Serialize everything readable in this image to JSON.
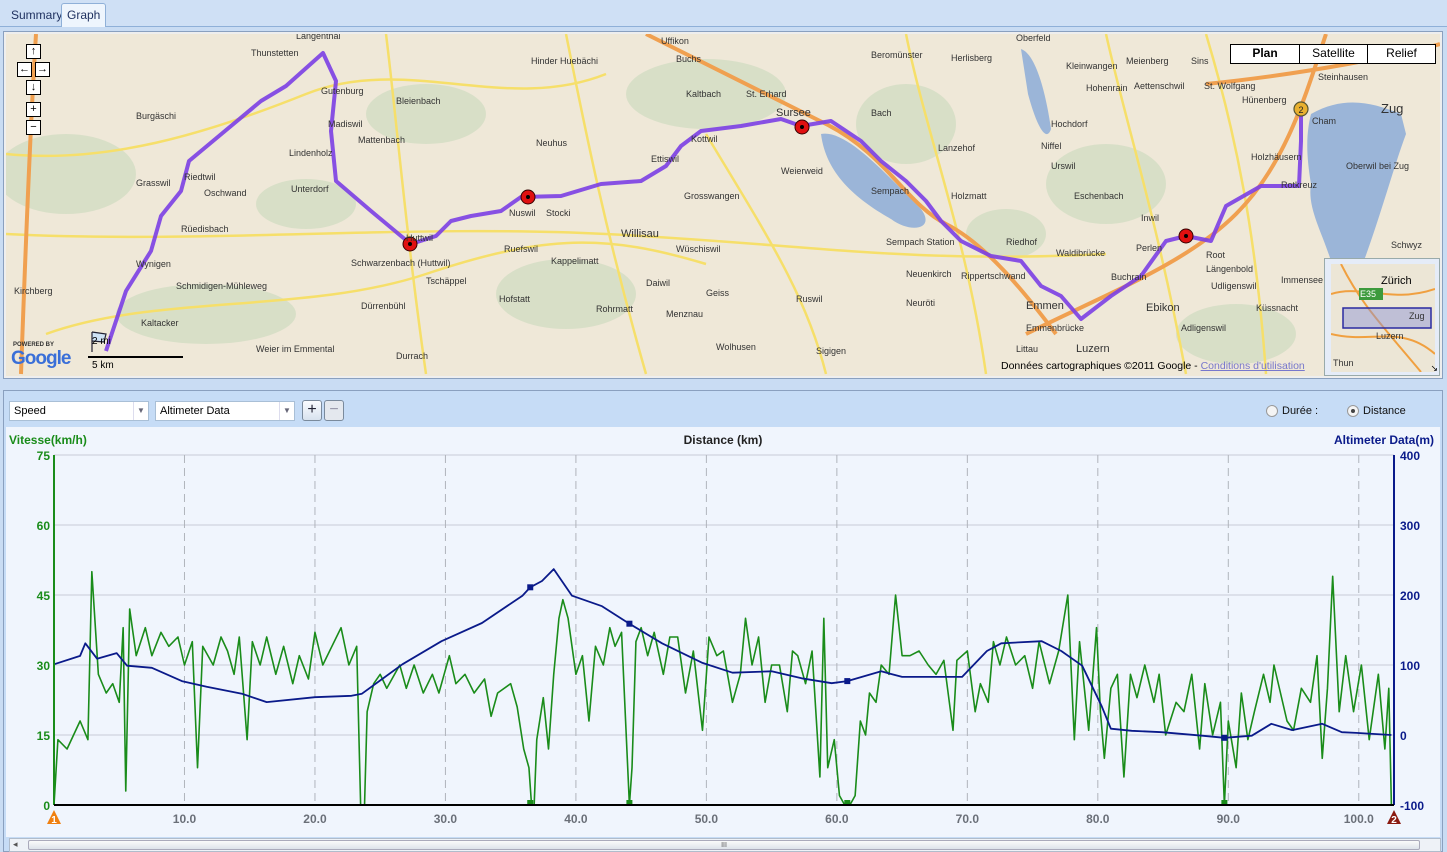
{
  "tabs": [
    {
      "label": "Summary",
      "active": false
    },
    {
      "label": "Graph",
      "active": true
    }
  ],
  "map": {
    "map_types": [
      "Plan",
      "Satellite",
      "Relief"
    ],
    "nav_icons": [
      "arrow-up",
      "arrow-left",
      "arrow-right",
      "arrow-down",
      "zoom-in",
      "zoom-out"
    ],
    "scale": {
      "miles": "2 mi",
      "km": "5 km"
    },
    "powered_by": "POWERED BY",
    "logo": "Google",
    "copyright": "Données cartographiques ©2011 Google - ",
    "terms_link": "Conditions d'utilisation",
    "overview_labels": [
      "Zürich",
      "E35",
      "Zug",
      "Luzern",
      "Thun"
    ],
    "route_color": "#7b3fe4",
    "end_marker": "2",
    "places": [
      "Langenthal",
      "Thunstetten",
      "Burgäschi",
      "Riedtwil",
      "Grasswil",
      "Oschwand",
      "Rüedisbach",
      "Wynigen",
      "Kirchberg",
      "Schmidigen-Mühleweg",
      "Kaltacker",
      "Weier im Emmental",
      "Gutenburg",
      "Madiswil",
      "Mattenbach",
      "Lindenholz",
      "Unterdorf",
      "Bleienbach",
      "Huttwil",
      "Schwarzenbach (Huttwil)",
      "Dürrenbühl",
      "Durrach",
      "Tschäppel",
      "Hofstatt",
      "Ruefswil",
      "Nuswil",
      "Stocki",
      "Kappelimatt",
      "Hinder Huebächi",
      "Neuhus",
      "Willisau",
      "Ettiswil",
      "Kottwil",
      "Grosswangen",
      "Wüschiswil",
      "Daiwil",
      "Geiss",
      "Menznau",
      "Rohrmatt",
      "Wolhusen",
      "Ruswil",
      "Sigigen",
      "Sursee",
      "Buchs",
      "Uffikon",
      "Kaltbach",
      "St. Erhard",
      "Beromünster",
      "Bach",
      "Weierweid",
      "Sempach",
      "Sempach Station",
      "Neuenkirch",
      "Neuröti",
      "Holzmatt",
      "Lanzehof",
      "Niffel",
      "Hochdorf",
      "Urswil",
      "Eschenbach",
      "Inwil",
      "Perlen",
      "Root",
      "Längenbold",
      "Udligenswil",
      "Küssnacht",
      "Ebikon",
      "Adligenswil",
      "Buchrain",
      "Emmen",
      "Emmenbrücke",
      "Rippertschwand",
      "Waldibrücke",
      "Riedhof",
      "Hohenrain",
      "Kleinwangen",
      "Oberfeld",
      "Herlisberg",
      "Meienberg",
      "Sins",
      "Aettenschwil",
      "St. Wolfgang",
      "Hünenberg",
      "Cham",
      "Steinhausen",
      "Zug",
      "Holzhäusern",
      "Rotkreuz",
      "Oberwil bei Zug",
      "Immensee",
      "Luzern",
      "Littau",
      "Schwyz"
    ]
  },
  "graph": {
    "left_select": "Speed",
    "right_select": "Altimeter Data",
    "add_label": "+",
    "remove_label": "−",
    "radio_duration": "Durée :",
    "radio_distance": "Distance",
    "x_mode": "distance",
    "scroll_grip": "III"
  },
  "chart_data": {
    "type": "line",
    "title": "Distance (km)",
    "xlabel": "Distance (km)",
    "ylabel_left": "Vitesse(km/h)",
    "ylabel_right": "Altimeter Data(m)",
    "xlim": [
      0,
      102.7
    ],
    "ylim_left": [
      0,
      75
    ],
    "ylim_right": [
      -100,
      400
    ],
    "x_ticks": [
      "10.0",
      "20.0",
      "30.0",
      "40.0",
      "50.0",
      "60.0",
      "70.0",
      "80.0",
      "90.0",
      "100.0"
    ],
    "y_ticks_left": [
      "0",
      "15",
      "30",
      "45",
      "60",
      "75"
    ],
    "y_ticks_right": [
      "-100",
      "0",
      "100",
      "200",
      "300",
      "400"
    ],
    "grid": true,
    "start_marker": "1",
    "end_marker": "2",
    "series": [
      {
        "axis": "left",
        "color": "#1a8c1a",
        "points": [
          [
            0,
            0
          ],
          [
            0.3,
            14
          ],
          [
            1,
            12
          ],
          [
            2,
            18
          ],
          [
            2.6,
            14
          ],
          [
            2.9,
            50
          ],
          [
            3.4,
            28
          ],
          [
            4,
            24
          ],
          [
            4.5,
            26
          ],
          [
            5,
            22
          ],
          [
            5.3,
            38
          ],
          [
            5.5,
            3
          ],
          [
            5.8,
            42
          ],
          [
            6.3,
            32
          ],
          [
            7,
            38
          ],
          [
            7.5,
            32
          ],
          [
            8.2,
            37
          ],
          [
            8.8,
            34
          ],
          [
            9.5,
            36
          ],
          [
            10,
            30
          ],
          [
            10.6,
            35
          ],
          [
            11,
            8
          ],
          [
            11.4,
            34
          ],
          [
            12.2,
            30
          ],
          [
            12.8,
            36
          ],
          [
            13.3,
            33
          ],
          [
            13.8,
            28
          ],
          [
            14.2,
            36
          ],
          [
            14.8,
            14
          ],
          [
            15.2,
            35
          ],
          [
            15.8,
            30
          ],
          [
            16.3,
            36
          ],
          [
            17,
            28
          ],
          [
            17.6,
            34
          ],
          [
            18.3,
            26
          ],
          [
            18.8,
            32
          ],
          [
            19.5,
            27
          ],
          [
            20,
            37
          ],
          [
            20.6,
            30
          ],
          [
            21.3,
            34
          ],
          [
            22,
            38
          ],
          [
            22.6,
            30
          ],
          [
            23.2,
            34
          ],
          [
            23.5,
            0
          ],
          [
            23.8,
            0
          ],
          [
            24,
            20
          ],
          [
            24.5,
            26
          ],
          [
            25,
            28
          ],
          [
            25.5,
            25
          ],
          [
            26.5,
            30
          ],
          [
            27,
            25
          ],
          [
            27.6,
            30
          ],
          [
            28.3,
            24
          ],
          [
            29,
            28
          ],
          [
            29.5,
            24
          ],
          [
            30.3,
            32
          ],
          [
            30.8,
            26
          ],
          [
            31.5,
            28
          ],
          [
            32.2,
            24
          ],
          [
            33,
            27
          ],
          [
            33.5,
            19
          ],
          [
            34,
            24
          ],
          [
            35,
            26
          ],
          [
            35.5,
            21
          ],
          [
            36,
            12
          ],
          [
            36.4,
            8
          ],
          [
            36.6,
            0
          ],
          [
            36.8,
            0
          ],
          [
            37,
            14
          ],
          [
            37.5,
            23
          ],
          [
            37.9,
            12
          ],
          [
            38.3,
            28
          ],
          [
            38.7,
            40
          ],
          [
            39,
            44
          ],
          [
            39.4,
            40
          ],
          [
            40,
            28
          ],
          [
            40.5,
            32
          ],
          [
            41,
            18
          ],
          [
            41.5,
            34
          ],
          [
            42.1,
            30
          ],
          [
            42.6,
            38
          ],
          [
            43,
            34
          ],
          [
            43.5,
            37
          ],
          [
            44.1,
            0
          ],
          [
            44.3,
            8
          ],
          [
            44.6,
            35
          ],
          [
            45,
            38
          ],
          [
            45.5,
            32
          ],
          [
            46,
            37
          ],
          [
            46.7,
            28
          ],
          [
            47.2,
            36
          ],
          [
            47.8,
            36
          ],
          [
            48.4,
            24
          ],
          [
            49,
            33
          ],
          [
            49.7,
            16
          ],
          [
            50.2,
            36
          ],
          [
            50.8,
            32
          ],
          [
            51.3,
            33
          ],
          [
            52,
            22
          ],
          [
            52.6,
            28
          ],
          [
            53,
            40
          ],
          [
            53.5,
            30
          ],
          [
            54,
            36
          ],
          [
            54.5,
            22
          ],
          [
            55,
            30
          ],
          [
            55.6,
            30
          ],
          [
            56.2,
            20
          ],
          [
            56.6,
            33
          ],
          [
            57,
            32
          ],
          [
            57.6,
            26
          ],
          [
            58.1,
            33
          ],
          [
            58.7,
            6
          ],
          [
            59,
            40
          ],
          [
            59.3,
            8
          ],
          [
            59.8,
            14
          ],
          [
            60.2,
            2
          ],
          [
            60.6,
            0
          ],
          [
            61,
            0
          ],
          [
            61.4,
            2
          ],
          [
            61.8,
            18
          ],
          [
            62.2,
            15
          ],
          [
            62.5,
            24
          ],
          [
            63,
            22
          ],
          [
            63.4,
            30
          ],
          [
            64,
            28
          ],
          [
            64.5,
            45
          ],
          [
            65,
            32
          ],
          [
            65.6,
            32
          ],
          [
            66.3,
            33
          ],
          [
            67,
            30
          ],
          [
            67.6,
            28
          ],
          [
            68.2,
            31
          ],
          [
            68.9,
            16
          ],
          [
            69.2,
            31
          ],
          [
            70,
            33
          ],
          [
            70.6,
            20
          ],
          [
            71,
            26
          ],
          [
            71.6,
            22
          ],
          [
            72,
            35
          ],
          [
            72.5,
            30
          ],
          [
            73,
            36
          ],
          [
            73.7,
            30
          ],
          [
            74.4,
            32
          ],
          [
            75,
            25
          ],
          [
            75.5,
            35
          ],
          [
            76.3,
            26
          ],
          [
            77,
            33
          ],
          [
            77.7,
            45
          ],
          [
            78.2,
            14
          ],
          [
            78.6,
            35
          ],
          [
            79.3,
            16
          ],
          [
            79.9,
            38
          ],
          [
            80.2,
            20
          ],
          [
            80.5,
            10
          ],
          [
            81,
            25
          ],
          [
            81.5,
            28
          ],
          [
            82,
            6
          ],
          [
            82.5,
            28
          ],
          [
            83,
            23
          ],
          [
            83.6,
            30
          ],
          [
            84.3,
            22
          ],
          [
            84.7,
            28
          ],
          [
            85.2,
            15
          ],
          [
            86,
            22
          ],
          [
            86.6,
            20
          ],
          [
            87.2,
            28
          ],
          [
            87.8,
            12
          ],
          [
            88.2,
            26
          ],
          [
            88.8,
            15
          ],
          [
            89.4,
            22
          ],
          [
            89.7,
            0
          ],
          [
            90,
            18
          ],
          [
            90.6,
            8
          ],
          [
            91,
            24
          ],
          [
            91.5,
            14
          ],
          [
            92,
            20
          ],
          [
            92.7,
            28
          ],
          [
            93.2,
            22
          ],
          [
            93.5,
            30
          ],
          [
            94,
            24
          ],
          [
            94.5,
            18
          ],
          [
            95,
            16
          ],
          [
            95.6,
            25
          ],
          [
            96.3,
            22
          ],
          [
            96.8,
            32
          ],
          [
            97.2,
            10
          ],
          [
            97.6,
            25
          ],
          [
            98,
            49
          ],
          [
            98.5,
            20
          ],
          [
            99,
            32
          ],
          [
            99.6,
            20
          ],
          [
            100.2,
            30
          ],
          [
            100.8,
            14
          ],
          [
            101.5,
            28
          ],
          [
            102,
            12
          ],
          [
            102.3,
            25
          ],
          [
            102.5,
            0
          ]
        ]
      },
      {
        "axis": "right",
        "color": "#0a1a8a",
        "points": [
          [
            0,
            101
          ],
          [
            2,
            113
          ],
          [
            2.4,
            131
          ],
          [
            3.3,
            109
          ],
          [
            4.8,
            117
          ],
          [
            5.6,
            99
          ],
          [
            7.5,
            96
          ],
          [
            9.8,
            77
          ],
          [
            11.7,
            69
          ],
          [
            14.4,
            59
          ],
          [
            16.3,
            47
          ],
          [
            20,
            54
          ],
          [
            22.8,
            56
          ],
          [
            23.6,
            59
          ],
          [
            26.7,
            101
          ],
          [
            29.7,
            134
          ],
          [
            32.8,
            160
          ],
          [
            35.9,
            199
          ],
          [
            36.5,
            211
          ],
          [
            37.4,
            220
          ],
          [
            38.3,
            237
          ],
          [
            39.7,
            199
          ],
          [
            42,
            184
          ],
          [
            44.1,
            159
          ],
          [
            46.6,
            131
          ],
          [
            49.7,
            103
          ],
          [
            52,
            89
          ],
          [
            55,
            91
          ],
          [
            57.3,
            81
          ],
          [
            59.6,
            74
          ],
          [
            60.8,
            77
          ],
          [
            63.4,
            91
          ],
          [
            65,
            83
          ],
          [
            69.6,
            83
          ],
          [
            71.5,
            120
          ],
          [
            72.6,
            131
          ],
          [
            75.7,
            134
          ],
          [
            77.2,
            120
          ],
          [
            78.8,
            99
          ],
          [
            80.3,
            41
          ],
          [
            81,
            9
          ],
          [
            82.6,
            6
          ],
          [
            84.9,
            4
          ],
          [
            88,
            -1
          ],
          [
            89.7,
            -4
          ],
          [
            91.8,
            -1
          ],
          [
            93.3,
            16
          ],
          [
            94.9,
            7
          ],
          [
            97.2,
            16
          ],
          [
            98.7,
            4
          ],
          [
            99.8,
            3
          ],
          [
            102.5,
            0
          ]
        ],
        "markers_km": [
          36.5,
          44.1,
          60.8,
          89.7
        ]
      }
    ]
  }
}
